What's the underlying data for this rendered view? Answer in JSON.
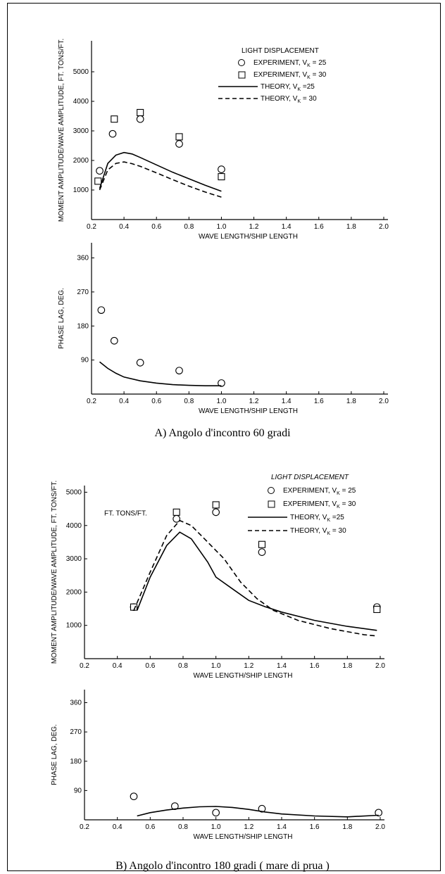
{
  "captions": {
    "a": "A) Angolo d'incontro 60 gradi",
    "b": "B) Angolo d'incontro 180 gradi ( mare di prua )"
  },
  "chart_data": [
    {
      "id": "a_moment",
      "type": "scatter",
      "title": "",
      "xlabel": "WAVE LENGTH/SHIP LENGTH",
      "ylabel": "MOMENT AMPLITUDE/WAVE AMPLITUDE, FT. TONS/FT.",
      "xlim": [
        0.2,
        2.0
      ],
      "ylim": [
        0,
        6000
      ],
      "x_ticks": [
        "0.2",
        "0.4",
        "0.6",
        "0.8",
        "1.0",
        "1.2",
        "1.4",
        "1.6",
        "1.8",
        "2.0"
      ],
      "y_ticks": [
        "1000",
        "2000",
        "3000",
        "4000",
        "5000"
      ],
      "legend": {
        "title": "LIGHT DISPLACEMENT",
        "entries": [
          {
            "label": "EXPERIMENT, V",
            "sub": "K",
            "value": " = 25",
            "marker": "circle"
          },
          {
            "label": "EXPERIMENT, V",
            "sub": "K",
            "value": " = 30",
            "marker": "square"
          },
          {
            "label": "THEORY, V",
            "sub": "K",
            "value": " =25",
            "marker": "solid"
          },
          {
            "label": "THEORY, V",
            "sub": "K",
            "value": " = 30",
            "marker": "dashed"
          }
        ]
      },
      "series": [
        {
          "name": "EXPERIMENT, VK = 25",
          "kind": "circle",
          "points": [
            [
              0.25,
              1650
            ],
            [
              0.33,
              2900
            ],
            [
              0.5,
              3400
            ],
            [
              0.74,
              2560
            ],
            [
              1.0,
              1700
            ]
          ]
        },
        {
          "name": "EXPERIMENT, VK = 30",
          "kind": "square",
          "points": [
            [
              0.24,
              1300
            ],
            [
              0.34,
              3400
            ],
            [
              0.5,
              3620
            ],
            [
              0.74,
              2800
            ],
            [
              1.0,
              1450
            ]
          ]
        },
        {
          "name": "THEORY, VK =25",
          "kind": "solid",
          "points": [
            [
              0.25,
              1050
            ],
            [
              0.3,
              1900
            ],
            [
              0.35,
              2180
            ],
            [
              0.4,
              2270
            ],
            [
              0.45,
              2220
            ],
            [
              0.5,
              2100
            ],
            [
              0.6,
              1850
            ],
            [
              0.7,
              1600
            ],
            [
              0.8,
              1380
            ],
            [
              0.9,
              1160
            ],
            [
              1.0,
              960
            ]
          ]
        },
        {
          "name": "THEORY, VK = 30",
          "kind": "dashed",
          "points": [
            [
              0.25,
              1000
            ],
            [
              0.3,
              1680
            ],
            [
              0.35,
              1900
            ],
            [
              0.4,
              1950
            ],
            [
              0.45,
              1890
            ],
            [
              0.5,
              1800
            ],
            [
              0.6,
              1580
            ],
            [
              0.7,
              1350
            ],
            [
              0.8,
              1130
            ],
            [
              0.9,
              930
            ],
            [
              1.0,
              760
            ]
          ]
        }
      ]
    },
    {
      "id": "a_phase",
      "type": "scatter",
      "title": "",
      "xlabel": "WAVE LENGTH/SHIP LENGTH",
      "ylabel": "PHASE LAG, DEG.",
      "xlim": [
        0.2,
        2.0
      ],
      "ylim": [
        0,
        400
      ],
      "x_ticks": [
        "0.2",
        "0.4",
        "0.6",
        "0.8",
        "1.0",
        "1.2",
        "1.4",
        "1.6",
        "1.8",
        "2.0"
      ],
      "y_ticks": [
        "90",
        "180",
        "270",
        "360"
      ],
      "series": [
        {
          "name": "EXPERIMENT, VK = 25",
          "kind": "circle",
          "points": [
            [
              0.26,
              222
            ],
            [
              0.34,
              141
            ],
            [
              0.5,
              83
            ],
            [
              0.74,
              62
            ],
            [
              1.0,
              29
            ]
          ]
        },
        {
          "name": "THEORY, VK =25",
          "kind": "solid",
          "points": [
            [
              0.25,
              85
            ],
            [
              0.3,
              68
            ],
            [
              0.35,
              55
            ],
            [
              0.4,
              45
            ],
            [
              0.5,
              35
            ],
            [
              0.6,
              29
            ],
            [
              0.7,
              25
            ],
            [
              0.8,
              23
            ],
            [
              0.9,
              22
            ],
            [
              1.0,
              22
            ]
          ]
        }
      ]
    },
    {
      "id": "b_moment",
      "type": "scatter",
      "title": "",
      "xlabel": "WAVE LENGTH/SHIP LENGTH",
      "ylabel": "MOMENT AMPLITUDE/WAVE AMPLITUDE, FT. TONS/FT.",
      "xlim": [
        0.2,
        2.0
      ],
      "ylim": [
        0,
        5200
      ],
      "x_ticks": [
        "0.2",
        "0.4",
        "0.6",
        "0.8",
        "1.0",
        "1.2",
        "1.4",
        "1.6",
        "1.8",
        "2.0"
      ],
      "y_ticks": [
        "1000",
        "2000",
        "3000",
        "4000",
        "5000"
      ],
      "annotation": "FT. TONS/FT.",
      "legend": {
        "title": "LIGHT DISPLACEMENT",
        "entries": [
          {
            "label": "EXPERIMENT, V",
            "sub": "K",
            "value": " = 25",
            "marker": "circle"
          },
          {
            "label": "EXPERIMENT, V",
            "sub": "K",
            "value": " = 30",
            "marker": "square"
          },
          {
            "label": "THEORY, V",
            "sub": "K",
            "value": " =25",
            "marker": "solid"
          },
          {
            "label": "THEORY, V",
            "sub": "K",
            "value": " = 30",
            "marker": "dashed"
          }
        ]
      },
      "series": [
        {
          "name": "EXPERIMENT, VK = 25",
          "kind": "circle",
          "points": [
            [
              0.5,
              1550
            ],
            [
              0.76,
              4200
            ],
            [
              1.0,
              4400
            ],
            [
              1.28,
              3200
            ],
            [
              1.98,
              1550
            ]
          ]
        },
        {
          "name": "EXPERIMENT, VK = 30",
          "kind": "square",
          "points": [
            [
              0.5,
              1550
            ],
            [
              0.76,
              4400
            ],
            [
              1.0,
              4620
            ],
            [
              1.28,
              3430
            ],
            [
              1.98,
              1480
            ]
          ]
        },
        {
          "name": "THEORY, VK =25",
          "kind": "solid",
          "points": [
            [
              0.52,
              1450
            ],
            [
              0.6,
              2450
            ],
            [
              0.7,
              3400
            ],
            [
              0.78,
              3800
            ],
            [
              0.85,
              3600
            ],
            [
              0.95,
              2900
            ],
            [
              1.0,
              2450
            ],
            [
              1.1,
              2100
            ],
            [
              1.2,
              1750
            ],
            [
              1.3,
              1560
            ],
            [
              1.4,
              1400
            ],
            [
              1.6,
              1150
            ],
            [
              1.8,
              970
            ],
            [
              1.98,
              850
            ]
          ]
        },
        {
          "name": "THEORY, VK = 30",
          "kind": "dashed",
          "points": [
            [
              0.5,
              1450
            ],
            [
              0.6,
              2600
            ],
            [
              0.7,
              3700
            ],
            [
              0.78,
              4150
            ],
            [
              0.85,
              4000
            ],
            [
              0.95,
              3500
            ],
            [
              1.05,
              3000
            ],
            [
              1.15,
              2300
            ],
            [
              1.25,
              1800
            ],
            [
              1.35,
              1450
            ],
            [
              1.5,
              1150
            ],
            [
              1.7,
              900
            ],
            [
              1.9,
              720
            ],
            [
              1.98,
              680
            ]
          ]
        }
      ]
    },
    {
      "id": "b_phase",
      "type": "scatter",
      "title": "",
      "xlabel": "WAVE LENGTH/SHIP LENGTH",
      "ylabel": "PHASE LAG, DEG.",
      "xlim": [
        0.2,
        2.0
      ],
      "ylim": [
        0,
        400
      ],
      "x_ticks": [
        "0.2",
        "0.4",
        "0.6",
        "0.8",
        "1.0",
        "1.2",
        "1.4",
        "1.6",
        "1.8",
        "2.0"
      ],
      "y_ticks": [
        "90",
        "180",
        "270",
        "360"
      ],
      "series": [
        {
          "name": "EXPERIMENT, VK = 25",
          "kind": "circle",
          "points": [
            [
              0.5,
              72
            ],
            [
              0.75,
              42
            ],
            [
              1.0,
              22
            ],
            [
              1.28,
              34
            ],
            [
              1.99,
              22
            ]
          ]
        },
        {
          "name": "THEORY, VK =25",
          "kind": "solid",
          "points": [
            [
              0.52,
              12
            ],
            [
              0.6,
              22
            ],
            [
              0.7,
              30
            ],
            [
              0.8,
              36
            ],
            [
              0.9,
              40
            ],
            [
              1.0,
              41
            ],
            [
              1.1,
              38
            ],
            [
              1.2,
              32
            ],
            [
              1.3,
              24
            ],
            [
              1.4,
              18
            ],
            [
              1.6,
              12
            ],
            [
              1.8,
              9
            ],
            [
              1.99,
              14
            ]
          ]
        }
      ]
    }
  ]
}
